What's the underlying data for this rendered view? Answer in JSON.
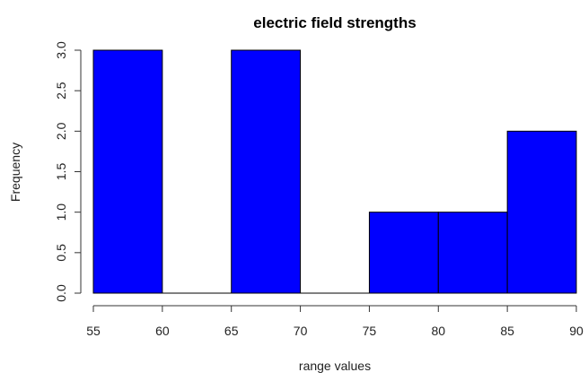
{
  "chart_data": {
    "type": "bar",
    "subtype": "histogram",
    "title": "electric field strengths",
    "xlabel": "range values",
    "ylabel": "Frequency",
    "bins": [
      {
        "start": 55,
        "end": 60,
        "count": 3
      },
      {
        "start": 60,
        "end": 65,
        "count": 0
      },
      {
        "start": 65,
        "end": 70,
        "count": 3
      },
      {
        "start": 70,
        "end": 75,
        "count": 0
      },
      {
        "start": 75,
        "end": 80,
        "count": 1
      },
      {
        "start": 80,
        "end": 85,
        "count": 1
      },
      {
        "start": 85,
        "end": 90,
        "count": 2
      }
    ],
    "x_ticks": [
      55,
      60,
      65,
      70,
      75,
      80,
      85,
      90
    ],
    "x_tick_labels": [
      "55",
      "60",
      "65",
      "70",
      "75",
      "80",
      "85",
      "90"
    ],
    "y_ticks": [
      0,
      0.5,
      1,
      1.5,
      2,
      2.5,
      3
    ],
    "y_tick_labels": [
      "0.0",
      "0.5",
      "1.0",
      "1.5",
      "2.0",
      "2.5",
      "3.0"
    ],
    "xlim": [
      55,
      90
    ],
    "ylim": [
      0,
      3
    ],
    "bar_color": "#0000ff",
    "border_color": "#000000",
    "grid": false,
    "legend": "none"
  }
}
